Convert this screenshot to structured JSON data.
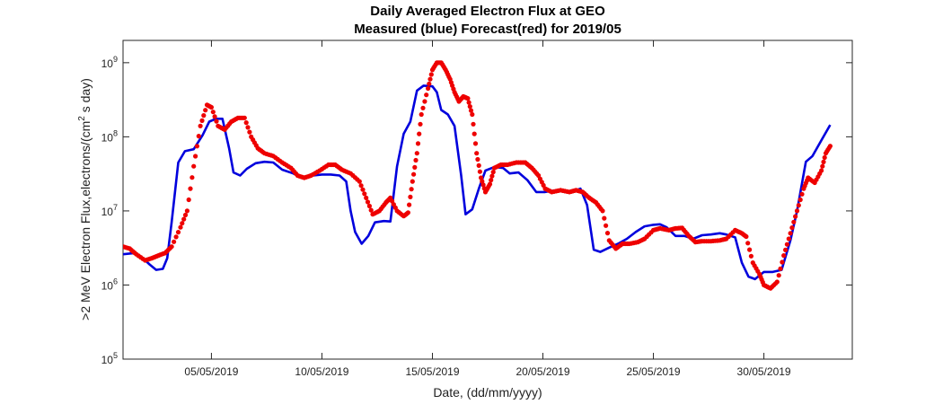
{
  "chart_data": {
    "type": "line",
    "title_line1": "Daily Averaged Electron Flux at GEO",
    "title_line2": "Measured (blue) Forecast(red) for 2019/05",
    "xlabel": "Date, (dd/mm/yyyy)",
    "ylabel_pre": ">2 MeV Electron Flux,electrons/(cm",
    "ylabel_sup": "2",
    "ylabel_post": " s day)",
    "xlim": [
      0,
      33
    ],
    "ylim": [
      100000,
      2000000000
    ],
    "yscale": "log",
    "grid": false,
    "x_ticks": [
      {
        "value": 4,
        "label": "05/05/2019"
      },
      {
        "value": 9,
        "label": "10/05/2019"
      },
      {
        "value": 14,
        "label": "15/05/2019"
      },
      {
        "value": 19,
        "label": "20/05/2019"
      },
      {
        "value": 24,
        "label": "25/05/2019"
      },
      {
        "value": 29,
        "label": "30/05/2019"
      }
    ],
    "y_ticks": [
      {
        "value": 100000,
        "base": "10",
        "exp": "5"
      },
      {
        "value": 1000000,
        "base": "10",
        "exp": "6"
      },
      {
        "value": 10000000,
        "base": "10",
        "exp": "7"
      },
      {
        "value": 100000000,
        "base": "10",
        "exp": "8"
      },
      {
        "value": 1000000000,
        "base": "10",
        "exp": "9"
      }
    ],
    "series": [
      {
        "label": "Measured (blue)",
        "style": "line",
        "color": "#0000dd",
        "points": [
          [
            0.0,
            2600000.0
          ],
          [
            0.5,
            2700000.0
          ],
          [
            0.9,
            2300000.0
          ],
          [
            1.2,
            1900000.0
          ],
          [
            1.5,
            1600000.0
          ],
          [
            1.8,
            1650000.0
          ],
          [
            2.0,
            2300000.0
          ],
          [
            2.2,
            7000000.0
          ],
          [
            2.5,
            45000000.0
          ],
          [
            2.8,
            64000000.0
          ],
          [
            3.2,
            68000000.0
          ],
          [
            3.6,
            105000000.0
          ],
          [
            3.9,
            160000000.0
          ],
          [
            4.2,
            175000000.0
          ],
          [
            4.5,
            175000000.0
          ],
          [
            4.8,
            70000000.0
          ],
          [
            5.0,
            33000000.0
          ],
          [
            5.3,
            30000000.0
          ],
          [
            5.6,
            37000000.0
          ],
          [
            6.0,
            44000000.0
          ],
          [
            6.4,
            46000000.0
          ],
          [
            6.8,
            45000000.0
          ],
          [
            7.2,
            36000000.0
          ],
          [
            7.7,
            32000000.0
          ],
          [
            8.1,
            28000000.0
          ],
          [
            8.6,
            30000000.0
          ],
          [
            9.0,
            31000000.0
          ],
          [
            9.4,
            31000000.0
          ],
          [
            9.8,
            30000000.0
          ],
          [
            10.1,
            25000000.0
          ],
          [
            10.3,
            10000000.0
          ],
          [
            10.5,
            5200000.0
          ],
          [
            10.8,
            3600000.0
          ],
          [
            11.1,
            4600000.0
          ],
          [
            11.4,
            7000000.0
          ],
          [
            11.8,
            7300000.0
          ],
          [
            12.1,
            7200000.0
          ],
          [
            12.4,
            40000000.0
          ],
          [
            12.7,
            110000000.0
          ],
          [
            13.0,
            160000000.0
          ],
          [
            13.3,
            420000000.0
          ],
          [
            13.6,
            490000000.0
          ],
          [
            14.0,
            480000000.0
          ],
          [
            14.2,
            400000000.0
          ],
          [
            14.4,
            230000000.0
          ],
          [
            14.7,
            200000000.0
          ],
          [
            15.0,
            140000000.0
          ],
          [
            15.3,
            30000000.0
          ],
          [
            15.5,
            9000000.0
          ],
          [
            15.8,
            10500000.0
          ],
          [
            16.1,
            20000000.0
          ],
          [
            16.4,
            35000000.0
          ],
          [
            16.8,
            39000000.0
          ],
          [
            17.2,
            38000000.0
          ],
          [
            17.5,
            32000000.0
          ],
          [
            17.9,
            33000000.0
          ],
          [
            18.3,
            26000000.0
          ],
          [
            18.7,
            18000000.0
          ],
          [
            19.1,
            18000000.0
          ],
          [
            19.6,
            19000000.0
          ],
          [
            20.0,
            18000000.0
          ],
          [
            20.3,
            18000000.0
          ],
          [
            20.7,
            20000000.0
          ],
          [
            21.0,
            12000000.0
          ],
          [
            21.3,
            3000000.0
          ],
          [
            21.6,
            2800000.0
          ],
          [
            22.0,
            3200000.0
          ],
          [
            22.4,
            3600000.0
          ],
          [
            22.8,
            4200000.0
          ],
          [
            23.2,
            5200000.0
          ],
          [
            23.6,
            6200000.0
          ],
          [
            24.0,
            6500000.0
          ],
          [
            24.3,
            6600000.0
          ],
          [
            24.6,
            6000000.0
          ],
          [
            25.0,
            4600000.0
          ],
          [
            25.4,
            4600000.0
          ],
          [
            25.8,
            4200000.0
          ],
          [
            26.2,
            4700000.0
          ],
          [
            26.6,
            4800000.0
          ],
          [
            27.0,
            5000000.0
          ],
          [
            27.3,
            4800000.0
          ],
          [
            27.7,
            4400000.0
          ],
          [
            28.0,
            2000000.0
          ],
          [
            28.3,
            1300000.0
          ],
          [
            28.6,
            1200000.0
          ],
          [
            29.0,
            1500000.0
          ],
          [
            29.4,
            1500000.0
          ],
          [
            29.8,
            1600000.0
          ],
          [
            30.2,
            4000000.0
          ],
          [
            30.5,
            10000000.0
          ],
          [
            30.9,
            46000000.0
          ],
          [
            31.2,
            55000000.0
          ],
          [
            31.6,
            90000000.0
          ],
          [
            32.0,
            145000000.0
          ]
        ]
      },
      {
        "label": "Forecast(red)",
        "style": "dots",
        "color": "#ee0000",
        "points": [
          [
            0.0,
            3300000.0
          ],
          [
            0.3,
            3100000.0
          ],
          [
            0.6,
            2600000.0
          ],
          [
            1.0,
            2150000.0
          ],
          [
            1.3,
            2300000.0
          ],
          [
            1.6,
            2500000.0
          ],
          [
            1.9,
            2700000.0
          ],
          [
            2.2,
            3300000.0
          ],
          [
            2.6,
            6000000.0
          ],
          [
            2.9,
            10000000.0
          ],
          [
            3.2,
            40000000.0
          ],
          [
            3.5,
            140000000.0
          ],
          [
            3.8,
            270000000.0
          ],
          [
            4.0,
            250000000.0
          ],
          [
            4.3,
            140000000.0
          ],
          [
            4.6,
            125000000.0
          ],
          [
            4.9,
            160000000.0
          ],
          [
            5.2,
            180000000.0
          ],
          [
            5.5,
            180000000.0
          ],
          [
            5.8,
            100000000.0
          ],
          [
            6.1,
            70000000.0
          ],
          [
            6.4,
            60000000.0
          ],
          [
            6.8,
            55000000.0
          ],
          [
            7.2,
            45000000.0
          ],
          [
            7.6,
            38000000.0
          ],
          [
            7.9,
            30000000.0
          ],
          [
            8.2,
            28000000.0
          ],
          [
            8.5,
            30000000.0
          ],
          [
            8.9,
            35000000.0
          ],
          [
            9.3,
            42000000.0
          ],
          [
            9.6,
            42000000.0
          ],
          [
            9.9,
            36000000.0
          ],
          [
            10.3,
            32000000.0
          ],
          [
            10.7,
            25000000.0
          ],
          [
            11.0,
            15000000.0
          ],
          [
            11.3,
            9000000.0
          ],
          [
            11.6,
            10000000.0
          ],
          [
            11.9,
            13000000.0
          ],
          [
            12.1,
            15000000.0
          ],
          [
            12.4,
            10000000.0
          ],
          [
            12.7,
            8500000.0
          ],
          [
            12.9,
            9500000.0
          ],
          [
            13.1,
            25000000.0
          ],
          [
            13.3,
            60000000.0
          ],
          [
            13.5,
            200000000.0
          ],
          [
            13.8,
            450000000.0
          ],
          [
            14.0,
            800000000.0
          ],
          [
            14.2,
            1000000000.0
          ],
          [
            14.4,
            1000000000.0
          ],
          [
            14.6,
            800000000.0
          ],
          [
            14.8,
            600000000.0
          ],
          [
            15.0,
            400000000.0
          ],
          [
            15.2,
            300000000.0
          ],
          [
            15.4,
            350000000.0
          ],
          [
            15.6,
            330000000.0
          ],
          [
            15.8,
            200000000.0
          ],
          [
            16.0,
            60000000.0
          ],
          [
            16.2,
            28000000.0
          ],
          [
            16.4,
            18000000.0
          ],
          [
            16.6,
            23000000.0
          ],
          [
            16.8,
            38000000.0
          ],
          [
            17.1,
            42000000.0
          ],
          [
            17.4,
            42000000.0
          ],
          [
            17.8,
            45000000.0
          ],
          [
            18.2,
            45000000.0
          ],
          [
            18.5,
            38000000.0
          ],
          [
            18.8,
            30000000.0
          ],
          [
            19.1,
            20000000.0
          ],
          [
            19.4,
            18000000.0
          ],
          [
            19.8,
            19000000.0
          ],
          [
            20.2,
            18000000.0
          ],
          [
            20.5,
            19000000.0
          ],
          [
            20.8,
            18000000.0
          ],
          [
            21.1,
            15000000.0
          ],
          [
            21.4,
            13000000.0
          ],
          [
            21.7,
            10000000.0
          ],
          [
            22.0,
            4000000.0
          ],
          [
            22.3,
            3100000.0
          ],
          [
            22.6,
            3600000.0
          ],
          [
            22.9,
            3600000.0
          ],
          [
            23.3,
            3800000.0
          ],
          [
            23.6,
            4200000.0
          ],
          [
            24.0,
            5500000.0
          ],
          [
            24.3,
            5800000.0
          ],
          [
            24.7,
            5500000.0
          ],
          [
            25.0,
            5800000.0
          ],
          [
            25.3,
            5900000.0
          ],
          [
            25.6,
            4600000.0
          ],
          [
            25.9,
            3800000.0
          ],
          [
            26.2,
            3900000.0
          ],
          [
            26.6,
            3900000.0
          ],
          [
            27.0,
            4000000.0
          ],
          [
            27.3,
            4200000.0
          ],
          [
            27.7,
            5500000.0
          ],
          [
            28.0,
            5000000.0
          ],
          [
            28.2,
            4500000.0
          ],
          [
            28.5,
            2000000.0
          ],
          [
            28.8,
            1400000.0
          ],
          [
            29.0,
            1000000.0
          ],
          [
            29.3,
            900000.0
          ],
          [
            29.6,
            1100000.0
          ],
          [
            29.9,
            2500000.0
          ],
          [
            30.2,
            5000000.0
          ],
          [
            30.5,
            10000000.0
          ],
          [
            30.8,
            20000000.0
          ],
          [
            31.0,
            28000000.0
          ],
          [
            31.3,
            24000000.0
          ],
          [
            31.6,
            35000000.0
          ],
          [
            31.8,
            60000000.0
          ],
          [
            32.0,
            75000000.0
          ]
        ]
      }
    ]
  }
}
